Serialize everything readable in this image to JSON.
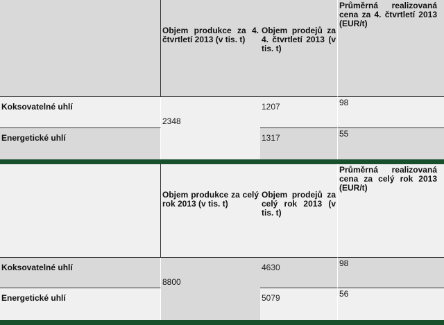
{
  "colors": {
    "divider": "#17502a",
    "dark_row": "#d9d9d9",
    "light_row": "#f0f0f0"
  },
  "tables": [
    {
      "headers": [
        "",
        "Objem produkce za 4. čtvrtletí 2013 (v tis. t)",
        "Objem prodejů za 4. čtvrtletí 2013 (v tis. t)",
        "Průměrná realizovaná cena za 4. čtvrtletí 2013 (EUR/t)"
      ],
      "production_total": "2348",
      "rows": [
        {
          "label": "Koksovatelné uhlí",
          "sales": "1207",
          "price": "98"
        },
        {
          "label": "Energetické uhlí",
          "sales": "1317",
          "price": "55"
        }
      ]
    },
    {
      "headers": [
        "",
        "Objem produkce za celý rok 2013 (v tis. t)",
        "Objem prodejů za celý rok 2013 (v tis. t)",
        "Průměrná realizovaná cena za celý rok 2013 (EUR/t)"
      ],
      "production_total": "8800",
      "rows": [
        {
          "label": "Koksovatelné uhlí",
          "sales": "4630",
          "price": "98"
        },
        {
          "label": "Energetické uhlí",
          "sales": "5079",
          "price": "56"
        }
      ]
    }
  ]
}
